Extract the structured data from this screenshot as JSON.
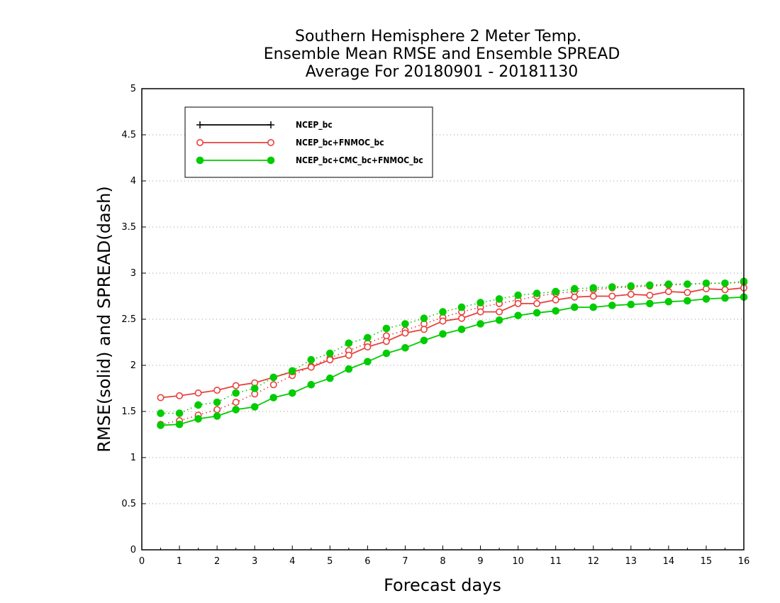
{
  "chart_data": {
    "type": "line",
    "title_lines": [
      "Southern Hemisphere 2 Meter Temp.",
      "Ensemble Mean RMSE and Ensemble SPREAD",
      "Average For 20180901 - 20181130"
    ],
    "xlabel": "Forecast days",
    "ylabel": "RMSE(solid) and SPREAD(dash)",
    "xlim": [
      0,
      16
    ],
    "ylim": [
      0,
      5
    ],
    "x_ticks": [
      "0",
      "1",
      "2",
      "3",
      "4",
      "5",
      "6",
      "7",
      "8",
      "9",
      "10",
      "11",
      "12",
      "13",
      "14",
      "15",
      "16"
    ],
    "y_ticks": [
      "0",
      "0.5",
      "1",
      "1.5",
      "2",
      "2.5",
      "3",
      "3.5",
      "4",
      "4.5",
      "5"
    ],
    "grid": "horizontal-dotted",
    "legend_position": "top-left",
    "x": [
      0.5,
      1,
      1.5,
      2,
      2.5,
      3,
      3.5,
      4,
      4.5,
      5,
      5.5,
      6,
      6.5,
      7,
      7.5,
      8,
      8.5,
      9,
      9.5,
      10,
      10.5,
      11,
      11.5,
      12,
      12.5,
      13,
      13.5,
      14,
      14.5,
      15,
      15.5,
      16
    ],
    "series": [
      {
        "name": "NCEP_bc",
        "color": "#000000",
        "marker": "plus",
        "rmse": [],
        "spread": []
      },
      {
        "name": "NCEP_bc+FNMOC_bc",
        "color": "#e8403c",
        "marker": "open-circle",
        "rmse": [
          1.65,
          1.67,
          1.7,
          1.73,
          1.78,
          1.81,
          1.87,
          1.93,
          1.98,
          2.06,
          2.11,
          2.2,
          2.26,
          2.35,
          2.39,
          2.48,
          2.51,
          2.58,
          2.58,
          2.67,
          2.67,
          2.71,
          2.74,
          2.75,
          2.75,
          2.77,
          2.76,
          2.8,
          2.79,
          2.83,
          2.82,
          2.84
        ],
        "spread": [
          1.36,
          1.4,
          1.46,
          1.52,
          1.6,
          1.69,
          1.79,
          1.89,
          1.99,
          2.08,
          2.16,
          2.24,
          2.32,
          2.38,
          2.45,
          2.52,
          2.58,
          2.63,
          2.67,
          2.71,
          2.75,
          2.78,
          2.8,
          2.82,
          2.84,
          2.85,
          2.86,
          2.87,
          2.88,
          2.89,
          2.89,
          2.9
        ]
      },
      {
        "name": "NCEP_bc+CMC_bc+FNMOC_bc",
        "color": "#00cc00",
        "marker": "filled-circle",
        "rmse": [
          1.35,
          1.36,
          1.42,
          1.45,
          1.52,
          1.55,
          1.65,
          1.7,
          1.79,
          1.86,
          1.96,
          2.04,
          2.13,
          2.19,
          2.27,
          2.34,
          2.39,
          2.45,
          2.49,
          2.54,
          2.57,
          2.59,
          2.63,
          2.63,
          2.65,
          2.66,
          2.67,
          2.69,
          2.7,
          2.72,
          2.73,
          2.74
        ],
        "spread": [
          1.48,
          1.48,
          1.57,
          1.6,
          1.7,
          1.75,
          1.87,
          1.94,
          2.06,
          2.13,
          2.24,
          2.3,
          2.4,
          2.45,
          2.51,
          2.58,
          2.63,
          2.68,
          2.72,
          2.76,
          2.78,
          2.8,
          2.83,
          2.84,
          2.85,
          2.86,
          2.87,
          2.88,
          2.88,
          2.89,
          2.89,
          2.91
        ]
      }
    ]
  }
}
